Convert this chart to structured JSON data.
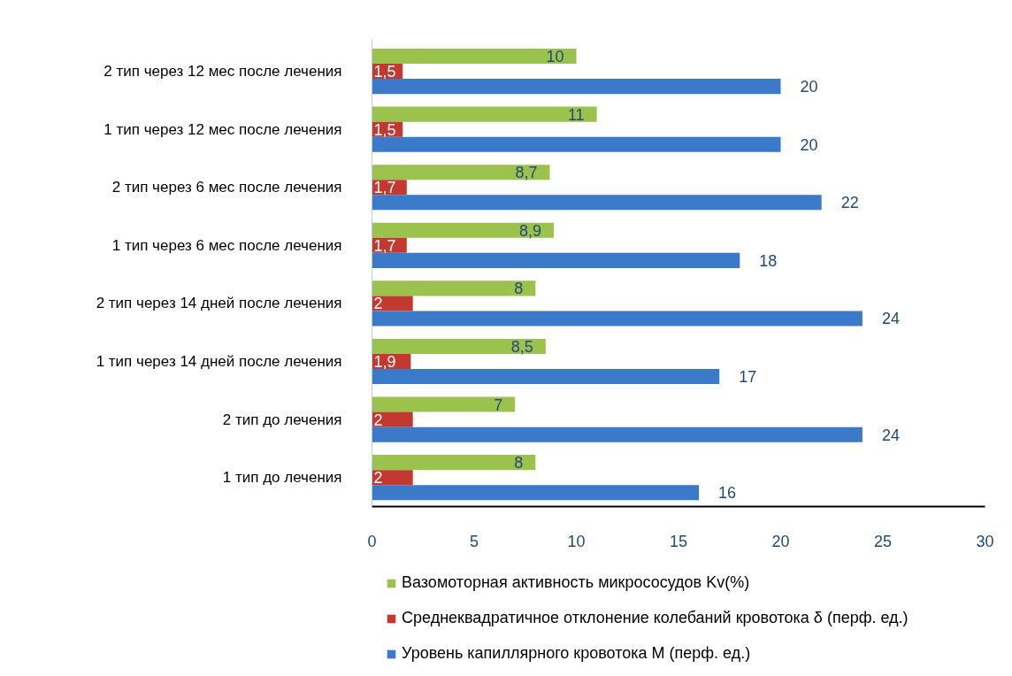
{
  "chart_data": {
    "type": "bar",
    "orientation": "horizontal",
    "categories": [
      "2 тип через 12 мес после лечения",
      "1 тип через 12 мес после лечения",
      "2 тип через 6 мес после лечения",
      "1 тип через 6 мес после лечения",
      "2 тип через 14 дней после лечения",
      "1 тип через 14 дней после лечения",
      "2 тип до лечения",
      "1 тип до лечения"
    ],
    "series": [
      {
        "name": "Вазомоторная активность микрососудов Kv(%)",
        "color": "#9bc24c",
        "values": [
          10,
          11,
          8.7,
          8.9,
          8,
          8.5,
          7,
          8
        ],
        "value_labels": [
          "10",
          "11",
          "8,7",
          "8,9",
          "8",
          "8,5",
          "7",
          "8"
        ]
      },
      {
        "name": "Среднеквадратичное отклонение колебаний кровотока δ (перф. ед.)",
        "color": "#c4392f",
        "values": [
          1.5,
          1.5,
          1.7,
          1.7,
          2,
          1.9,
          2,
          2
        ],
        "value_labels": [
          "1,5",
          "1,5",
          "1,7",
          "1,7",
          "2",
          "1,9",
          "2",
          "2"
        ]
      },
      {
        "name": "Уровень капиллярного кровотока М (перф. ед.)",
        "color": "#3b79c9",
        "values": [
          20,
          20,
          22,
          18,
          24,
          17,
          24,
          16
        ],
        "value_labels": [
          "20",
          "20",
          "22",
          "18",
          "24",
          "17",
          "24",
          "16"
        ]
      }
    ],
    "xlim": [
      0,
      30
    ],
    "xticks": [
      0,
      5,
      10,
      15,
      20,
      25,
      30
    ],
    "legend": "bottom"
  }
}
